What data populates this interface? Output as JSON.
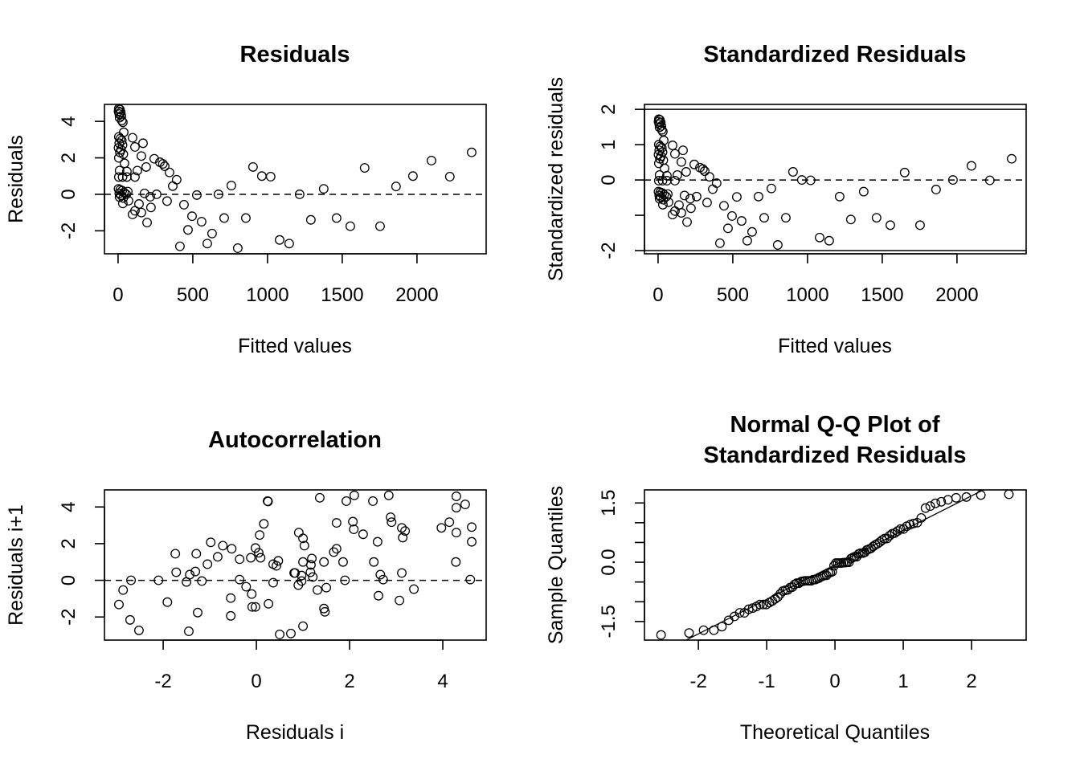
{
  "chart_data": [
    {
      "type": "scatter",
      "title": "Residuals",
      "xlabel": "Fitted values",
      "ylabel": "Residuals",
      "xlim": [
        -91,
        2463
      ],
      "ylim": [
        -3.26,
        4.93
      ],
      "xticks": [
        0,
        500,
        1000,
        1500,
        2000
      ],
      "xtick_labels": [
        "0",
        "500",
        "1000",
        "1500",
        "2000"
      ],
      "yticks": [
        -2,
        0,
        2,
        4
      ],
      "ytick_labels": [
        "-2",
        "0",
        "2",
        "4"
      ],
      "hlines": [
        {
          "y": 0,
          "style": "dashed"
        }
      ],
      "x": [
        5,
        12,
        3,
        18,
        8,
        22,
        10,
        25,
        32,
        38,
        5,
        15,
        25,
        8,
        30,
        3,
        20,
        12,
        35,
        5,
        43,
        97,
        113,
        167,
        156,
        242,
        280,
        300,
        312,
        344,
        392,
        188,
        129,
        59,
        10,
        5,
        30,
        59,
        113,
        366,
        758,
        903,
        962,
        1021,
        3,
        15,
        28,
        8,
        40,
        20,
        55,
        10,
        65,
        35,
        177,
        215,
        258,
        527,
        672,
        1215,
        32,
        70,
        140,
        113,
        97,
        156,
        220,
        328,
        441,
        194,
        495,
        559,
        710,
        855,
        468,
        629,
        414,
        597,
        801,
        1081,
        1145,
        1376,
        1290,
        1462,
        1554,
        1753,
        1650,
        1860,
        1973,
        2097,
        2220,
        2366
      ],
      "y": [
        4.7,
        4.65,
        4.55,
        4.5,
        4.4,
        4.3,
        4.2,
        4.05,
        3.95,
        3.4,
        3.15,
        3.05,
        2.95,
        2.8,
        2.7,
        2.55,
        2.45,
        2.3,
        2.2,
        2.0,
        1.7,
        3.1,
        2.6,
        2.8,
        2.1,
        1.95,
        1.76,
        1.67,
        1.54,
        1.2,
        0.8,
        1.5,
        1.3,
        1.25,
        1.3,
        0.95,
        0.95,
        0.95,
        0.95,
        0.45,
        0.48,
        1.5,
        1.0,
        0.97,
        0.3,
        0.25,
        0.2,
        0.05,
        0.1,
        -0.05,
        0.0,
        -0.15,
        0.15,
        -0.2,
        0.05,
        -0.13,
        0.0,
        -0.04,
        0.0,
        0.0,
        -0.5,
        -0.35,
        -0.53,
        -0.9,
        -1.1,
        -1.0,
        -0.72,
        -0.37,
        -0.57,
        -1.55,
        -1.2,
        -1.5,
        -1.3,
        -1.3,
        -1.95,
        -2.15,
        -2.85,
        -2.7,
        -2.95,
        -2.5,
        -2.7,
        0.3,
        -1.4,
        -1.3,
        -1.75,
        -1.75,
        1.45,
        0.43,
        1.0,
        1.85,
        0.97,
        2.3
      ]
    },
    {
      "type": "scatter",
      "title": "Standardized Residuals",
      "xlabel": "Fitted values",
      "ylabel": "Standardized residuals",
      "xlim": [
        -91,
        2463
      ],
      "ylim": [
        -2.09,
        2.14
      ],
      "xticks": [
        0,
        500,
        1000,
        1500,
        2000
      ],
      "xtick_labels": [
        "0",
        "500",
        "1000",
        "1500",
        "2000"
      ],
      "yticks": [
        -2,
        -1,
        0,
        1,
        2
      ],
      "ytick_labels": [
        "-2",
        "",
        "0",
        "1",
        "2"
      ],
      "hlines": [
        {
          "y": 0,
          "style": "dashed"
        },
        {
          "y": 2,
          "style": "solid"
        },
        {
          "y": -2,
          "style": "solid"
        }
      ],
      "x": [
        5,
        12,
        3,
        18,
        8,
        22,
        10,
        25,
        32,
        38,
        5,
        15,
        25,
        8,
        30,
        3,
        20,
        12,
        35,
        5,
        43,
        97,
        113,
        167,
        156,
        242,
        280,
        300,
        312,
        344,
        392,
        188,
        129,
        59,
        10,
        5,
        30,
        59,
        113,
        366,
        758,
        903,
        962,
        1021,
        3,
        15,
        28,
        8,
        40,
        20,
        55,
        10,
        65,
        35,
        177,
        215,
        258,
        527,
        672,
        1215,
        32,
        70,
        140,
        113,
        97,
        156,
        220,
        328,
        441,
        194,
        495,
        559,
        710,
        855,
        468,
        629,
        414,
        597,
        801,
        1081,
        1145,
        1376,
        1290,
        1462,
        1554,
        1753,
        1650,
        1860,
        1973,
        2097,
        2220,
        2366
      ],
      "y": [
        1.72,
        1.7,
        1.65,
        1.63,
        1.58,
        1.53,
        1.49,
        1.42,
        1.37,
        1.12,
        1.0,
        0.95,
        0.91,
        0.84,
        0.79,
        0.72,
        0.67,
        0.6,
        0.56,
        0.47,
        0.33,
        0.98,
        0.74,
        0.84,
        0.51,
        0.44,
        0.35,
        0.31,
        0.25,
        0.09,
        -0.09,
        0.23,
        0.14,
        0.12,
        0.14,
        -0.02,
        -0.02,
        -0.02,
        -0.02,
        -0.26,
        -0.24,
        0.23,
        0.0,
        -0.01,
        -0.33,
        -0.35,
        -0.37,
        -0.44,
        -0.42,
        -0.49,
        -0.47,
        -0.53,
        -0.4,
        -0.56,
        -0.44,
        -0.53,
        -0.47,
        -0.48,
        -0.47,
        -0.47,
        -0.7,
        -0.63,
        -0.71,
        -0.88,
        -0.98,
        -0.93,
        -0.8,
        -0.64,
        -0.73,
        -1.19,
        -1.02,
        -1.16,
        -1.07,
        -1.07,
        -1.37,
        -1.47,
        -1.79,
        -1.72,
        -1.84,
        -1.63,
        -1.72,
        -0.33,
        -1.12,
        -1.07,
        -1.28,
        -1.28,
        0.21,
        -0.27,
        0.0,
        0.4,
        -0.01,
        0.6
      ]
    },
    {
      "type": "scatter",
      "title": "Autocorrelation",
      "xlabel": "Residuals i",
      "ylabel": "Residuals i+1",
      "xlim": [
        -3.26,
        4.93
      ],
      "ylim": [
        -3.26,
        4.93
      ],
      "xticks": [
        -2,
        0,
        2,
        4
      ],
      "xtick_labels": [
        "-2",
        "0",
        "2",
        "4"
      ],
      "yticks": [
        -2,
        0,
        2,
        4
      ],
      "ytick_labels": [
        "-2",
        "0",
        "2",
        "4"
      ],
      "hlines": [
        {
          "y": 0,
          "style": "dashed"
        }
      ],
      "x": [
        -2.95,
        -2.86,
        -2.69,
        -2.71,
        -2.52,
        -2.1,
        -1.91,
        -1.74,
        -1.72,
        -1.45,
        -1.43,
        -1.5,
        -1.31,
        -1.29,
        -1.17,
        -1.26,
        -1.05,
        -0.98,
        -0.83,
        -0.72,
        -0.53,
        -0.36,
        -0.36,
        -0.22,
        -0.1,
        -0.55,
        -0.55,
        -0.12,
        -0.02,
        0.05,
        0.09,
        0.07,
        0.16,
        0.24,
        0.25,
        0.36,
        0.43,
        0.47,
        0.36,
        -0.09,
        -0.02,
        0.26,
        0.5,
        0.74,
        0.81,
        1.0,
        1.36,
        1.93,
        2.1,
        2.5,
        2.84,
        4.29,
        4.29,
        4.48,
        0.91,
        1.0,
        1.03,
        1.72,
        2.07,
        2.09,
        2.29,
        2.6,
        2.88,
        2.9,
        3.12,
        3.19,
        3.14,
        3.97,
        4.14,
        4.29,
        4.62,
        4.62,
        4.28,
        4.59,
        1.66,
        1.72,
        1.0,
        1.19,
        1.17,
        1.45,
        1.86,
        2.52,
        0.83,
        0.97,
        1.16,
        1.21,
        0.9,
        0.97,
        1.9,
        2.66,
        2.72,
        3.12,
        1.31,
        1.5,
        1.45,
        1.47,
        2.62,
        3.07,
        3.38
      ],
      "y": [
        -1.32,
        -0.53,
        0.0,
        -2.16,
        -2.73,
        0.0,
        -1.19,
        1.45,
        0.44,
        -2.78,
        0.31,
        -0.09,
        0.48,
        1.45,
        -0.04,
        -1.76,
        0.88,
        2.07,
        1.28,
        1.89,
        1.72,
        1.15,
        0.04,
        -0.35,
        -0.75,
        -0.97,
        -1.94,
        1.23,
        1.76,
        1.5,
        1.23,
        2.47,
        3.08,
        4.32,
        4.3,
        0.88,
        0.79,
        1.06,
        -0.13,
        -1.45,
        -1.45,
        -1.28,
        -2.95,
        -2.9,
        0.4,
        -2.5,
        4.5,
        4.32,
        4.63,
        4.32,
        4.63,
        4.58,
        3.96,
        4.14,
        2.6,
        2.29,
        1.89,
        3.13,
        3.2,
        2.78,
        2.51,
        2.1,
        3.44,
        3.17,
        2.86,
        2.69,
        2.33,
        2.86,
        3.17,
        2.6,
        2.9,
        2.1,
        1.0,
        0.04,
        1.54,
        1.72,
        1.0,
        1.19,
        0.84,
        1.0,
        1.0,
        1.0,
        0.4,
        0.26,
        0.44,
        0.18,
        -0.26,
        -0.04,
        0.0,
        0.31,
        0.04,
        0.4,
        -0.53,
        -0.4,
        -1.54,
        -1.72,
        -0.84,
        -1.1,
        -0.48
      ]
    },
    {
      "type": "scatter",
      "title": "Normal Q-Q Plot of\nStandardized Residuals",
      "title_lines": [
        "Normal Q-Q Plot of",
        "Standardized Residuals"
      ],
      "xlabel": "Theoretical Quantiles",
      "ylabel": "Sample Quantiles",
      "xlim": [
        -2.79,
        2.8
      ],
      "ylim": [
        -1.97,
        1.83
      ],
      "xticks": [
        -2,
        -1,
        0,
        1,
        2
      ],
      "xtick_labels": [
        "-2",
        "-1",
        "0",
        "1",
        "2"
      ],
      "yticks": [
        -1.5,
        -1.0,
        -0.5,
        0.0,
        0.5,
        1.0,
        1.5
      ],
      "ytick_labels": [
        "-1.5",
        "",
        "",
        "0.0",
        "",
        "",
        "1.5"
      ],
      "qqline": true,
      "sample": [
        1.72,
        1.7,
        1.65,
        1.63,
        1.58,
        1.53,
        1.49,
        1.42,
        1.37,
        1.12,
        1.0,
        0.95,
        0.91,
        0.84,
        0.79,
        0.72,
        0.67,
        0.6,
        0.56,
        0.47,
        0.33,
        0.98,
        0.74,
        0.84,
        0.51,
        0.44,
        0.35,
        0.31,
        0.25,
        0.09,
        -0.09,
        0.23,
        0.14,
        0.12,
        0.14,
        -0.02,
        -0.02,
        -0.02,
        -0.02,
        -0.26,
        -0.24,
        0.23,
        0.0,
        -0.01,
        -0.33,
        -0.35,
        -0.37,
        -0.44,
        -0.42,
        -0.49,
        -0.47,
        -0.53,
        -0.4,
        -0.56,
        -0.44,
        -0.53,
        -0.47,
        -0.48,
        -0.47,
        -0.47,
        -0.7,
        -0.63,
        -0.71,
        -0.88,
        -0.98,
        -0.93,
        -0.8,
        -0.64,
        -0.73,
        -1.19,
        -1.02,
        -1.16,
        -1.07,
        -1.07,
        -1.37,
        -1.47,
        -1.79,
        -1.72,
        -1.84,
        -1.63,
        -1.72,
        -0.33,
        -1.12,
        -1.07,
        -1.28,
        -1.28,
        0.21,
        -0.27,
        0.0,
        0.4,
        -0.01,
        0.6
      ]
    }
  ]
}
